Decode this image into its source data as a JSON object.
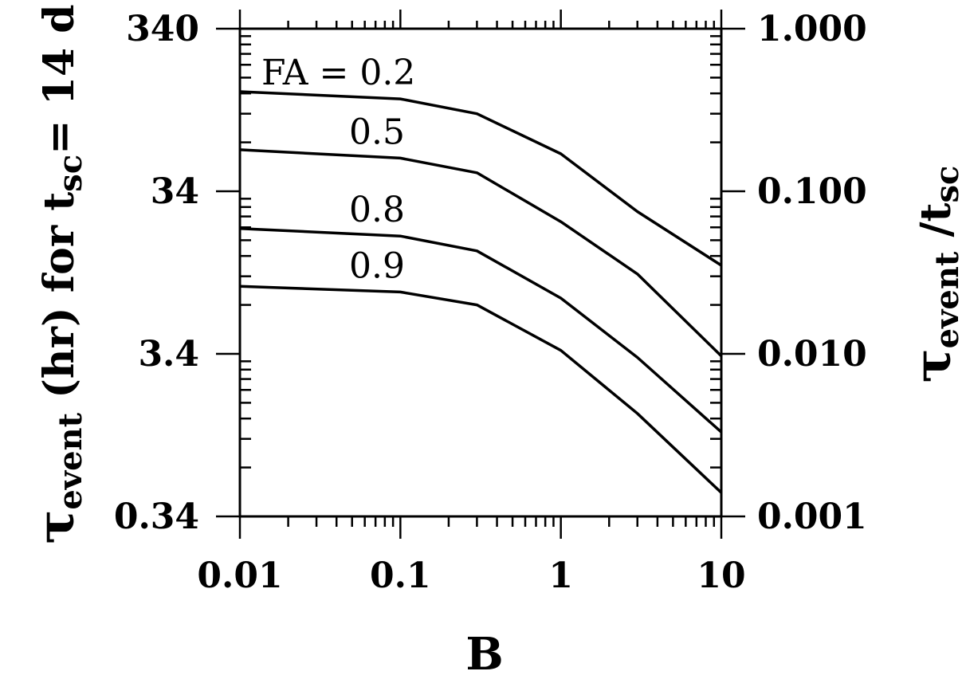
{
  "chart_data": {
    "type": "line",
    "x_scale": "log",
    "y_scale": "log",
    "xlabel": "B",
    "ylabel_left": {
      "symbol": "τ",
      "sub": "event",
      "text": " (hr) for t",
      "sub2": "sc",
      "text2": "= 14 d"
    },
    "ylabel_right": {
      "symbol": "τ",
      "sub": "event",
      "text": " /t",
      "sub2": "sc"
    },
    "xlim": [
      0.01,
      10
    ],
    "ylim_left": [
      0.34,
      340
    ],
    "ylim_right": [
      0.001,
      1.0
    ],
    "x_ticks": [
      {
        "value": 0.01,
        "label": "0.01"
      },
      {
        "value": 0.1,
        "label": "0.1"
      },
      {
        "value": 1,
        "label": "1"
      },
      {
        "value": 10,
        "label": "10"
      }
    ],
    "y_ticks_left": [
      {
        "value": 0.34,
        "label": "0.34"
      },
      {
        "value": 3.4,
        "label": "3.4"
      },
      {
        "value": 34,
        "label": "34"
      },
      {
        "value": 340,
        "label": "340"
      }
    ],
    "y_ticks_right": [
      {
        "value": 0.001,
        "label": "0.001"
      },
      {
        "value": 0.01,
        "label": "0.010"
      },
      {
        "value": 0.1,
        "label": "0.100"
      },
      {
        "value": 1.0,
        "label": "1.000"
      }
    ],
    "x": [
      0.01,
      0.1,
      0.3,
      1,
      3,
      10
    ],
    "series": [
      {
        "name": "FA = 0.2",
        "values": [
          0.41,
          0.37,
          0.3,
          0.17,
          0.075,
          0.035
        ]
      },
      {
        "name": "0.5",
        "values": [
          0.18,
          0.16,
          0.13,
          0.065,
          0.031,
          0.0097
        ]
      },
      {
        "name": "0.8",
        "values": [
          0.059,
          0.053,
          0.043,
          0.022,
          0.0095,
          0.0033
        ]
      },
      {
        "name": "0.9",
        "values": [
          0.026,
          0.024,
          0.02,
          0.0105,
          0.0043,
          0.0014
        ]
      }
    ],
    "grid": false,
    "legend": "none"
  }
}
